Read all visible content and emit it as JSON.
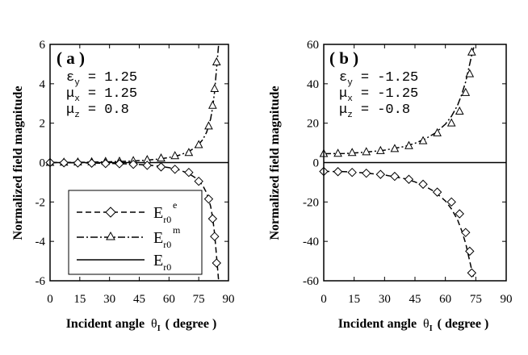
{
  "chart_data": [
    {
      "type": "line",
      "panel_label": "( a )",
      "xlabel": "Incident angle",
      "xlabel_symbol": "θ",
      "xlabel_sub": "I",
      "xlabel_unit": "( degree )",
      "ylabel": "Normalized field magnitude",
      "xlim": [
        0,
        90
      ],
      "ylim": [
        -6,
        6
      ],
      "xticks": [
        "0",
        "15",
        "30",
        "45",
        "60",
        "75",
        "90"
      ],
      "yticks": [
        "6",
        "4",
        "2",
        "0",
        "-2",
        "-4",
        "-6"
      ],
      "params": [
        {
          "symbol": "ε",
          "sub": "y",
          "text": "= 1.25"
        },
        {
          "symbol": "μ",
          "sub": "x",
          "text": "= 1.25"
        },
        {
          "symbol": "μ",
          "sub": "z",
          "text": "= 0.8"
        }
      ],
      "legend": {
        "position": "lower-left",
        "entries": [
          {
            "base": "E",
            "sub": "r0",
            "sup": "e",
            "style": "dashed",
            "marker": "diamond"
          },
          {
            "base": "E",
            "sub": "r0",
            "sup": "m",
            "style": "dashdot",
            "marker": "triangle"
          },
          {
            "base": "E",
            "sub": "r0",
            "sup": "",
            "style": "solid",
            "marker": "none"
          }
        ]
      },
      "series": [
        {
          "name": "E_r0^m",
          "style": "dashdot",
          "marker": "triangle",
          "curve": {
            "x": [
              0,
              10,
              20,
              30,
              40,
              50,
              55,
              60,
              65,
              70,
              74,
              77,
              79,
              81,
              82,
              83,
              84,
              85
            ],
            "y": [
              0.0,
              0.01,
              0.02,
              0.04,
              0.07,
              0.13,
              0.18,
              0.26,
              0.37,
              0.56,
              0.82,
              1.16,
              1.55,
              2.22,
              2.8,
              3.6,
              4.8,
              5.95
            ]
          },
          "markers": {
            "x": [
              0,
              7,
              14,
              21,
              28,
              35,
              42,
              49,
              56,
              63,
              70,
              75,
              80,
              82,
              83,
              84
            ],
            "y": [
              0.0,
              0.01,
              0.02,
              0.03,
              0.05,
              0.06,
              0.09,
              0.14,
              0.22,
              0.34,
              0.5,
              0.9,
              1.85,
              2.9,
              3.75,
              5.1
            ]
          }
        },
        {
          "name": "E_r0^e",
          "style": "dashed",
          "marker": "diamond",
          "curve": {
            "x": [
              0,
              10,
              20,
              30,
              40,
              50,
              55,
              60,
              65,
              70,
              74,
              77,
              79,
              81,
              82,
              83,
              84,
              85
            ],
            "y": [
              0.0,
              -0.01,
              -0.02,
              -0.04,
              -0.07,
              -0.13,
              -0.18,
              -0.26,
              -0.37,
              -0.56,
              -0.82,
              -1.16,
              -1.55,
              -2.22,
              -2.8,
              -3.6,
              -4.8,
              -5.95
            ]
          },
          "markers": {
            "x": [
              0,
              7,
              14,
              21,
              28,
              35,
              42,
              49,
              56,
              63,
              70,
              75,
              80,
              82,
              83,
              84
            ],
            "y": [
              0.0,
              -0.01,
              -0.02,
              -0.03,
              -0.05,
              -0.06,
              -0.09,
              -0.14,
              -0.22,
              -0.34,
              -0.5,
              -0.95,
              -1.85,
              -2.85,
              -3.75,
              -5.1
            ]
          }
        },
        {
          "name": "E_r0",
          "style": "solid",
          "marker": "none",
          "curve": {
            "x": [
              0,
              90
            ],
            "y": [
              0,
              0
            ]
          }
        }
      ]
    },
    {
      "type": "line",
      "panel_label": "( b )",
      "xlabel": "Incident angle",
      "xlabel_symbol": "θ",
      "xlabel_sub": "I",
      "xlabel_unit": "( degree )",
      "ylabel": "Normalized field magnitude",
      "xlim": [
        0,
        90
      ],
      "ylim": [
        -60,
        60
      ],
      "xticks": [
        "0",
        "15",
        "30",
        "45",
        "60",
        "75",
        "90"
      ],
      "yticks": [
        "60",
        "40",
        "20",
        "0",
        "-20",
        "-40",
        "-60"
      ],
      "params": [
        {
          "symbol": "ε",
          "sub": "y",
          "text": "= -1.25"
        },
        {
          "symbol": "μ",
          "sub": "x",
          "text": "= -1.25"
        },
        {
          "symbol": "μ",
          "sub": "z",
          "text": "= -0.8"
        }
      ],
      "series": [
        {
          "name": "E_r0^m",
          "style": "dashdot",
          "marker": "triangle",
          "curve": {
            "x": [
              0,
              10,
              20,
              30,
              40,
              45,
              50,
              55,
              60,
              63,
              66,
              68,
              70,
              71,
              72,
              73,
              74
            ],
            "y": [
              4.5,
              4.6,
              5.2,
              6.3,
              8.2,
              9.8,
              12.0,
              15.0,
              19.5,
              23.5,
              29.0,
              34.5,
              41.0,
              45.5,
              50.0,
              54.5,
              58.5
            ]
          },
          "markers": {
            "x": [
              0,
              7,
              14,
              21,
              28,
              35,
              42,
              49,
              56,
              63,
              67,
              70,
              72,
              73
            ],
            "y": [
              4.5,
              4.6,
              5.0,
              5.4,
              6.0,
              7.0,
              8.5,
              11.0,
              15.0,
              20.0,
              26.0,
              35.5,
              45.0,
              56.0
            ]
          }
        },
        {
          "name": "E_r0^e",
          "style": "dashed",
          "marker": "diamond",
          "curve": {
            "x": [
              0,
              10,
              20,
              30,
              40,
              45,
              50,
              55,
              60,
              63,
              66,
              68,
              70,
              71,
              72,
              73,
              74
            ],
            "y": [
              -4.5,
              -4.6,
              -5.2,
              -6.3,
              -8.2,
              -9.8,
              -12.0,
              -15.0,
              -19.5,
              -23.5,
              -29.0,
              -34.5,
              -41.0,
              -45.5,
              -50.0,
              -54.5,
              -58.5
            ]
          },
          "markers": {
            "x": [
              0,
              7,
              14,
              21,
              28,
              35,
              42,
              49,
              56,
              63,
              67,
              70,
              72,
              73
            ],
            "y": [
              -4.5,
              -4.6,
              -5.0,
              -5.4,
              -6.0,
              -7.0,
              -8.5,
              -11.0,
              -15.0,
              -20.0,
              -26.0,
              -35.5,
              -45.0,
              -56.0
            ]
          }
        },
        {
          "name": "E_r0",
          "style": "solid",
          "marker": "none",
          "curve": {
            "x": [
              0,
              90
            ],
            "y": [
              0,
              0
            ]
          }
        }
      ]
    }
  ]
}
